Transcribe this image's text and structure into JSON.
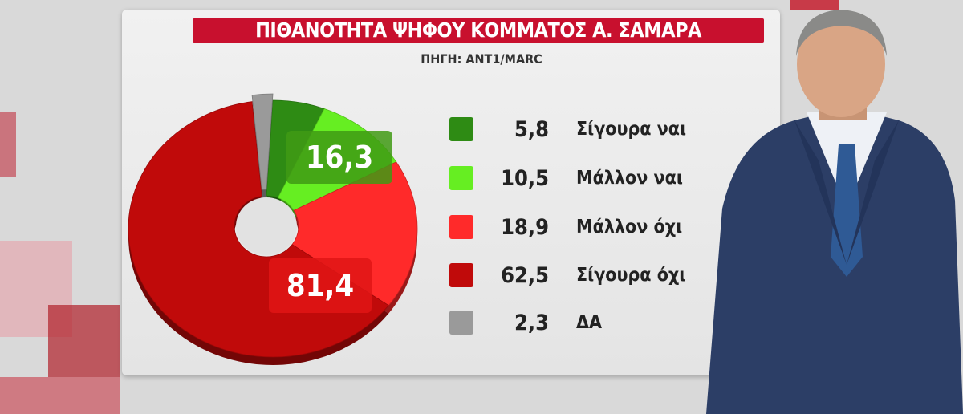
{
  "title": "ΠΙΘΑΝΟΤΗΤΑ ΨΗΦΟΥ ΚΟΜΜΑΤΟΣ Α. ΣΑΜΑΡΑ",
  "source": "ΠΗΓΗ: ANT1/MARC",
  "chart_data": {
    "type": "pie",
    "variant": "donut-3d",
    "title": "ΠΙΘΑΝΟΤΗΤΑ ΨΗΦΟΥ ΚΟΜΜΑΤΟΣ Α. ΣΑΜΑΡΑ",
    "subtitle": "ΠΗΓΗ: ANT1/MARC",
    "slices": [
      {
        "label": "Σίγουρα ναι",
        "value": 5.8,
        "value_text": "5,8",
        "color": "#2e8b14"
      },
      {
        "label": "Μάλλον ναι",
        "value": 10.5,
        "value_text": "10,5",
        "color": "#66ee22"
      },
      {
        "label": "Μάλλον όχι",
        "value": 18.9,
        "value_text": "18,9",
        "color": "#ff2a2a"
      },
      {
        "label": "Σίγουρα όχι",
        "value": 62.5,
        "value_text": "62,5",
        "color": "#c00a0a"
      },
      {
        "label": "ΔΑ",
        "value": 2.3,
        "value_text": "2,3",
        "color": "#9a9a9a"
      }
    ],
    "group_labels": [
      {
        "text": "16,3",
        "color": "#3f9a14"
      },
      {
        "text": "81,4",
        "color": "#e01515"
      }
    ],
    "legend_placement": "right"
  }
}
